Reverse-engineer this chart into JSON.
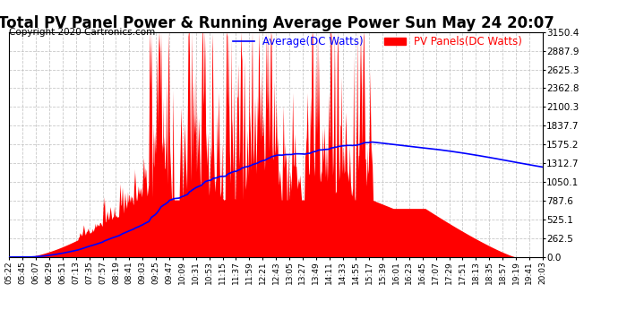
{
  "title": "Total PV Panel Power & Running Average Power Sun May 24 20:07",
  "copyright": "Copyright 2020 Cartronics.com",
  "legend_average": "Average(DC Watts)",
  "legend_pv": "PV Panels(DC Watts)",
  "background_color": "#ffffff",
  "grid_color": "#bbbbbb",
  "pv_fill_color": "#ff0000",
  "avg_line_color": "#0000ff",
  "yticks": [
    0.0,
    262.5,
    525.1,
    787.6,
    1050.1,
    1312.7,
    1575.2,
    1837.7,
    2100.3,
    2362.8,
    2625.3,
    2887.9,
    3150.4
  ],
  "ymax": 3150.4,
  "xticklabels": [
    "05:22",
    "05:45",
    "06:07",
    "06:29",
    "06:51",
    "07:13",
    "07:35",
    "07:57",
    "08:19",
    "08:41",
    "09:03",
    "09:25",
    "09:47",
    "10:09",
    "10:31",
    "10:53",
    "11:15",
    "11:37",
    "11:59",
    "12:21",
    "12:43",
    "13:05",
    "13:27",
    "13:49",
    "14:11",
    "14:33",
    "14:55",
    "15:17",
    "15:39",
    "16:01",
    "16:23",
    "16:45",
    "17:07",
    "17:29",
    "17:51",
    "18:13",
    "18:35",
    "18:57",
    "19:19",
    "19:41",
    "20:03"
  ],
  "title_fontsize": 12,
  "copyright_fontsize": 7.5,
  "legend_fontsize": 8.5,
  "tick_fontsize": 6.5,
  "ytick_fontsize": 7.5
}
